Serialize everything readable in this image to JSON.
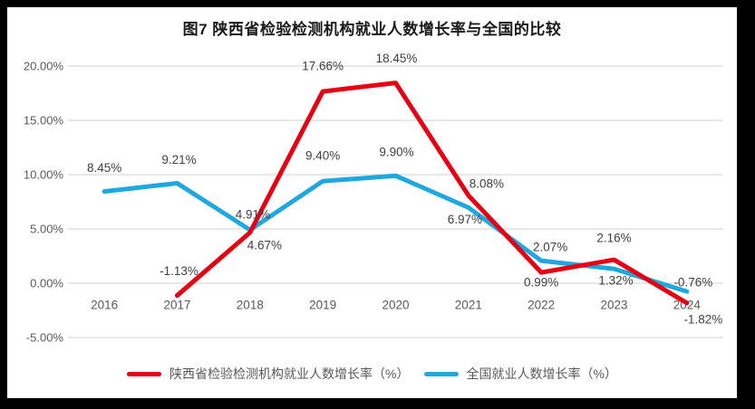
{
  "chart_data": {
    "type": "line",
    "title": "图7 陕西省检验检测机构就业人数增长率与全国的比较",
    "categories": [
      "2016",
      "2017",
      "2018",
      "2019",
      "2020",
      "2021",
      "2022",
      "2023",
      "2024"
    ],
    "series": [
      {
        "name": "陕西省检验检测机构就业人数增长率（%）",
        "color": "#e60012",
        "values": [
          null,
          -1.13,
          4.67,
          17.66,
          18.45,
          8.08,
          0.99,
          2.16,
          -1.82
        ],
        "labels": [
          "",
          "-1.13%",
          "4.67%",
          "17.66%",
          "18.45%",
          "8.08%",
          "0.99%",
          "2.16%",
          "-1.82%"
        ],
        "label_offsets": [
          [
            0,
            0
          ],
          [
            2,
            -27
          ],
          [
            16,
            14
          ],
          [
            0,
            -28
          ],
          [
            1,
            -27
          ],
          [
            20,
            -13
          ],
          [
            0,
            11
          ],
          [
            0,
            -24
          ],
          [
            18,
            18
          ]
        ]
      },
      {
        "name": "全国就业人数增长率（%）",
        "color": "#1fa8e0",
        "values": [
          8.45,
          9.21,
          4.91,
          9.4,
          9.9,
          6.97,
          2.07,
          1.32,
          -0.76
        ],
        "labels": [
          "8.45%",
          "9.21%",
          "4.91%",
          "9.40%",
          "9.90%",
          "6.97%",
          "2.07%",
          "1.32%",
          "-0.76%"
        ],
        "label_offsets": [
          [
            0,
            -26
          ],
          [
            2,
            -26
          ],
          [
            3,
            -17
          ],
          [
            0,
            -28
          ],
          [
            1,
            -26
          ],
          [
            -4,
            13
          ],
          [
            10,
            -15
          ],
          [
            2,
            13
          ],
          [
            7,
            -10
          ]
        ]
      }
    ],
    "y_ticks": [
      {
        "value": 20,
        "label": "20.00%"
      },
      {
        "value": 15,
        "label": "15.00%"
      },
      {
        "value": 10,
        "label": "10.00%"
      },
      {
        "value": 5,
        "label": "5.00%"
      },
      {
        "value": 0,
        "label": "0.00%"
      },
      {
        "value": -5,
        "label": "-5.00%"
      }
    ],
    "ylim": [
      -5,
      20
    ],
    "grid": "horizontal-only",
    "legend_position": "bottom"
  },
  "colors": {
    "series_red": "#e60012",
    "series_blue": "#1fa8e0",
    "gridline": "#d9d9d9",
    "axis_text": "#595959",
    "data_label_text": "#404040",
    "outer_frame": "#000000",
    "plot_background": "#ffffff"
  }
}
